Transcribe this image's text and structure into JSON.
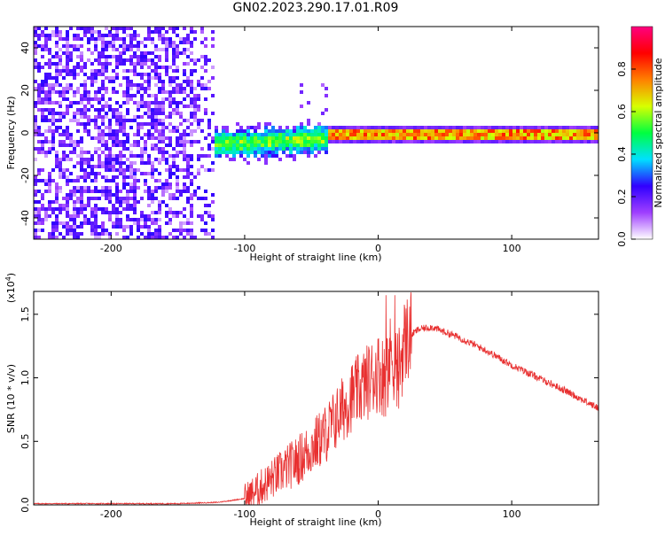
{
  "title": "GN02.2023.290.17.01.R09",
  "chart_data": [
    {
      "type": "heatmap",
      "xlabel": "Height of straight line (km)",
      "ylabel": "Frequency (Hz)",
      "xlim": [
        -258,
        165
      ],
      "ylim": [
        -50,
        50
      ],
      "x_ticks": [
        -200,
        -100,
        0,
        100
      ],
      "y_ticks": [
        -40,
        -20,
        0,
        20,
        40
      ],
      "colorbar": {
        "label": "Normalized spectral amplitude",
        "range": [
          0.0,
          1.0
        ],
        "ticks": [
          0.0,
          0.2,
          0.4,
          0.6,
          0.8
        ],
        "tick_labels": [
          "0.0",
          "0.2",
          "0.4",
          "0.6",
          "0.8"
        ],
        "colors": [
          "#ffffff",
          "#9f3fff",
          "#3000ff",
          "#00e0ff",
          "#00ff40",
          "#d8ff00",
          "#ff8000",
          "#ff0000",
          "#ff0080"
        ]
      },
      "regions": [
        {
          "x_range": [
            -258,
            -125
          ],
          "description_level": 0.2,
          "y_range": [
            -50,
            50
          ]
        },
        {
          "x_range": [
            -135,
            -40
          ],
          "description_level": 0.45,
          "center_y": [
            -5,
            -2
          ],
          "half_width": 5
        },
        {
          "x_range": [
            -40,
            165
          ],
          "description_level": 0.75,
          "center_y": 0,
          "half_width": 2
        }
      ]
    },
    {
      "type": "line",
      "xlabel": "Height of straight line (km)",
      "ylabel": "SNR (10 * v/v)",
      "multiplier_label": "(x10",
      "multiplier_exp": "4",
      "multiplier_close": ")",
      "xlim": [
        -258,
        165
      ],
      "ylim": [
        0,
        1.68
      ],
      "x_ticks": [
        -200,
        -100,
        0,
        100
      ],
      "y_ticks": [
        0.0,
        0.5,
        1.0,
        1.5
      ],
      "y_tick_labels": [
        "0.0",
        "0.5",
        "1.0",
        "1.5"
      ],
      "color": "#e83030",
      "x": [
        -258,
        -200,
        -150,
        -120,
        -100,
        -90,
        -80,
        -70,
        -60,
        -50,
        -40,
        -30,
        -20,
        -10,
        0,
        5,
        10,
        15,
        20,
        30,
        40,
        60,
        80,
        100,
        120,
        140,
        165
      ],
      "y": [
        0.01,
        0.01,
        0.01,
        0.02,
        0.05,
        0.12,
        0.2,
        0.28,
        0.35,
        0.45,
        0.55,
        0.7,
        0.85,
        0.95,
        1.05,
        1.0,
        1.2,
        1.05,
        1.3,
        1.38,
        1.4,
        1.32,
        1.22,
        1.1,
        1.0,
        0.9,
        0.76
      ]
    }
  ]
}
